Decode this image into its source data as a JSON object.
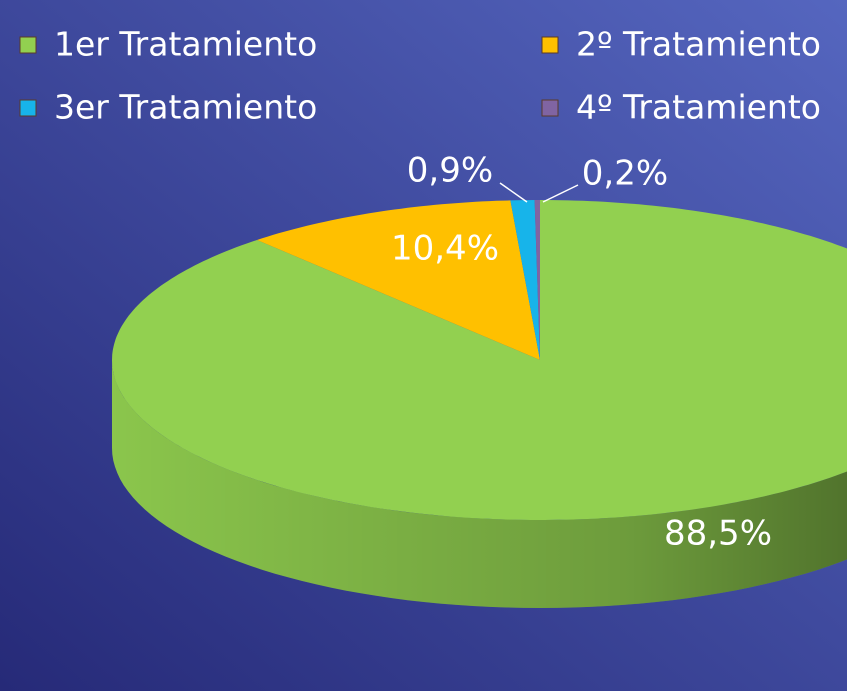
{
  "chart_data": {
    "type": "pie3d",
    "categories": [
      "1er Tratamiento",
      "2º Tratamiento",
      "3er Tratamiento",
      "4º Tratamiento"
    ],
    "values": [
      88.5,
      10.4,
      0.9,
      0.2
    ],
    "value_labels": [
      "88,5%",
      "10,4%",
      "0,9%",
      "0,2%"
    ],
    "colors": [
      "#92d050",
      "#ffc000",
      "#17b4ea",
      "#8064a2"
    ],
    "legend": "top"
  }
}
